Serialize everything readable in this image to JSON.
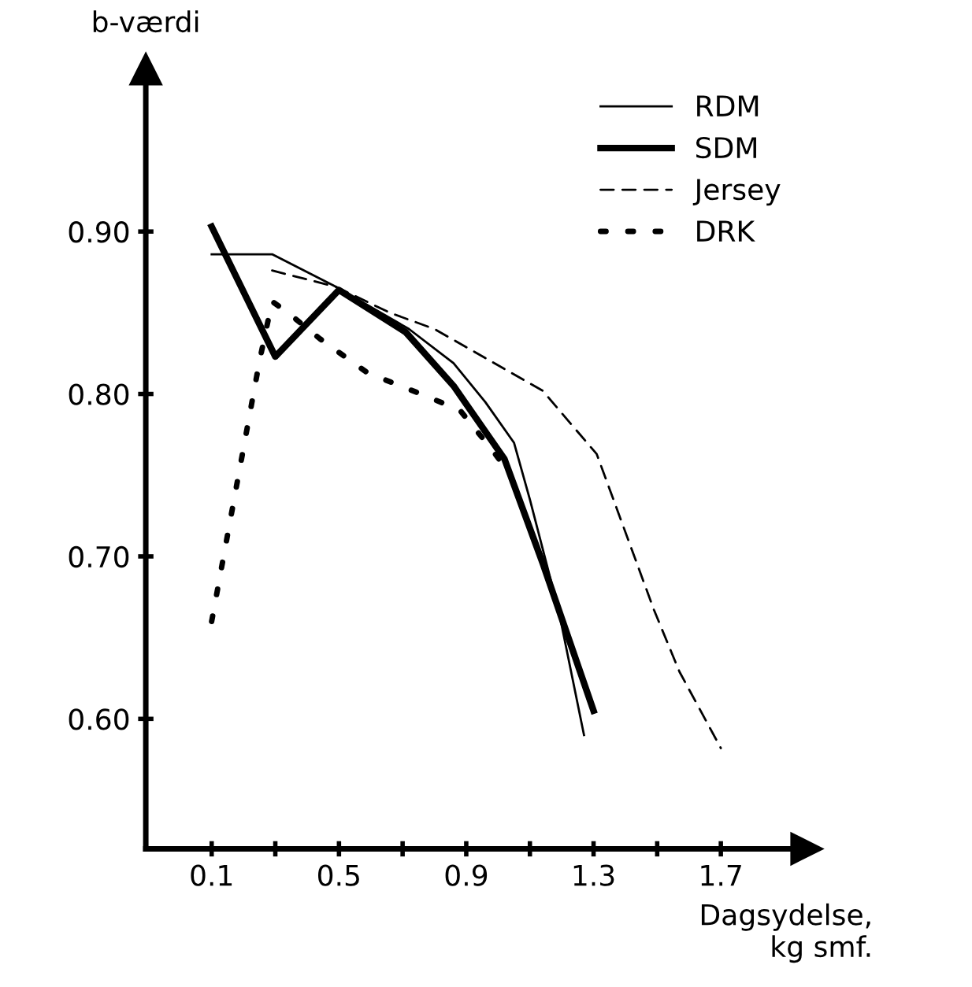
{
  "chart_data": {
    "type": "line",
    "ylabel": "b-værdi",
    "xlabel": "Dagsydelse,\nkg smf.",
    "xlim": [
      -0.107,
      1.97
    ],
    "ylim": [
      0.52,
      1.0
    ],
    "xticks": [
      {
        "value": 0.1,
        "label": "0.1"
      },
      {
        "value": 0.3,
        "label": null
      },
      {
        "value": 0.5,
        "label": "0.5"
      },
      {
        "value": 0.7,
        "label": null
      },
      {
        "value": 0.9,
        "label": "0.9"
      },
      {
        "value": 1.1,
        "label": null
      },
      {
        "value": 1.3,
        "label": "1.3"
      },
      {
        "value": 1.5,
        "label": null
      },
      {
        "value": 1.7,
        "label": "1.7"
      }
    ],
    "yticks": [
      {
        "value": 0.6,
        "label": "0.60"
      },
      {
        "value": 0.7,
        "label": "0.70"
      },
      {
        "value": 0.8,
        "label": "0.80"
      },
      {
        "value": 0.9,
        "label": "0.90"
      }
    ],
    "legend": "top right",
    "grid": false,
    "series": [
      {
        "name": "RDM",
        "color": "#000000",
        "line_style": "solid",
        "x": [
          0.1,
          0.29,
          0.49,
          0.72,
          0.86,
          0.96,
          1.05,
          1.1,
          1.19,
          1.27
        ],
        "values": [
          0.886,
          0.886,
          0.866,
          0.84,
          0.819,
          0.795,
          0.77,
          0.735,
          0.667,
          0.59
        ]
      },
      {
        "name": "SDM",
        "color": "#000000",
        "line_style": "solid",
        "x": [
          0.1,
          0.3,
          0.5,
          0.71,
          0.86,
          1.02,
          1.14,
          1.3
        ],
        "values": [
          0.903,
          0.823,
          0.864,
          0.838,
          0.805,
          0.76,
          0.696,
          0.605
        ]
      },
      {
        "name": "Jersey",
        "color": "#000000",
        "line_style": "dashed",
        "x": [
          0.29,
          0.49,
          0.66,
          0.8,
          1.14,
          1.31,
          1.49,
          1.57,
          1.7
        ],
        "values": [
          0.876,
          0.866,
          0.85,
          0.84,
          0.802,
          0.763,
          0.667,
          0.629,
          0.582
        ]
      },
      {
        "name": "DRK",
        "color": "#000000",
        "line_style": "dotted",
        "x": [
          0.1,
          0.25,
          0.29,
          0.34,
          0.44,
          0.59,
          0.77,
          0.88,
          0.98,
          1.04
        ],
        "values": [
          0.66,
          0.82,
          0.857,
          0.85,
          0.834,
          0.813,
          0.799,
          0.79,
          0.766,
          0.75
        ]
      }
    ]
  }
}
